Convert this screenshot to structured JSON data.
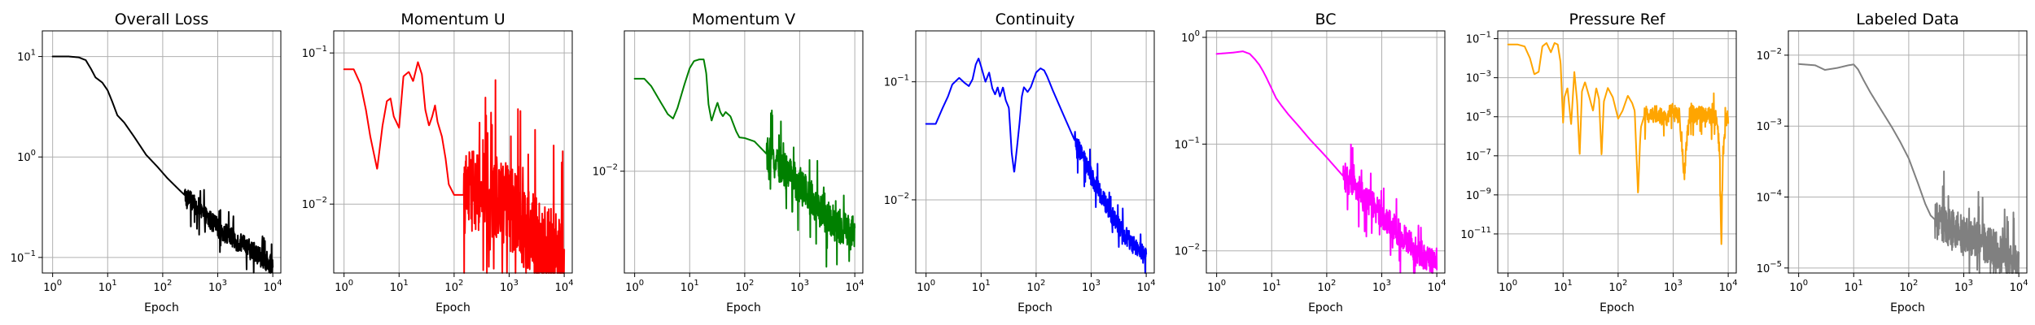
{
  "chart_data": [
    {
      "type": "line",
      "title": "Overall Loss",
      "xlabel": "Epoch",
      "ylabel": "",
      "xscale": "log",
      "yscale": "log",
      "xlim": [
        0.65,
        14000
      ],
      "ylim": [
        0.07,
        18
      ],
      "grid": true,
      "color": "#000000",
      "xticks": [
        {
          "v": 1,
          "b": "10",
          "e": "0"
        },
        {
          "v": 10,
          "b": "10",
          "e": "1"
        },
        {
          "v": 100,
          "b": "10",
          "e": "2"
        },
        {
          "v": 1000,
          "b": "10",
          "e": "3"
        },
        {
          "v": 10000,
          "b": "10",
          "e": "4"
        }
      ],
      "yticks": [
        {
          "v": 0.1,
          "b": "10",
          "e": "−1"
        },
        {
          "v": 1,
          "b": "10",
          "e": "0"
        },
        {
          "v": 10,
          "b": "10",
          "e": "1"
        }
      ],
      "noise": {
        "from": 250,
        "amp": 0.1
      },
      "points": [
        [
          1,
          10
        ],
        [
          2,
          10
        ],
        [
          3,
          9.8
        ],
        [
          4,
          9.2
        ],
        [
          5,
          7.5
        ],
        [
          6,
          6.2
        ],
        [
          8,
          5.5
        ],
        [
          10,
          4.6
        ],
        [
          12,
          3.6
        ],
        [
          15,
          2.6
        ],
        [
          20,
          2.2
        ],
        [
          30,
          1.6
        ],
        [
          50,
          1.05
        ],
        [
          80,
          0.8
        ],
        [
          120,
          0.62
        ],
        [
          200,
          0.47
        ],
        [
          300,
          0.38
        ],
        [
          500,
          0.28
        ],
        [
          1000,
          0.2
        ],
        [
          2000,
          0.15
        ],
        [
          5000,
          0.11
        ],
        [
          10000,
          0.082
        ]
      ]
    },
    {
      "type": "line",
      "title": "Momentum U",
      "xlabel": "Epoch",
      "ylabel": "",
      "xscale": "log",
      "yscale": "log",
      "xlim": [
        0.65,
        14000
      ],
      "ylim": [
        0.0035,
        0.14
      ],
      "grid": true,
      "color": "#ff0000",
      "xticks": [
        {
          "v": 1,
          "b": "10",
          "e": "0"
        },
        {
          "v": 10,
          "b": "10",
          "e": "1"
        },
        {
          "v": 100,
          "b": "10",
          "e": "2"
        },
        {
          "v": 1000,
          "b": "10",
          "e": "3"
        },
        {
          "v": 10000,
          "b": "10",
          "e": "4"
        }
      ],
      "yticks": [
        {
          "v": 0.01,
          "b": "10",
          "e": "−2"
        },
        {
          "v": 0.1,
          "b": "10",
          "e": "−1"
        }
      ],
      "noise": {
        "from": 150,
        "amp": 0.28
      },
      "points": [
        [
          1,
          0.078
        ],
        [
          1.5,
          0.078
        ],
        [
          2,
          0.062
        ],
        [
          2.5,
          0.042
        ],
        [
          3,
          0.028
        ],
        [
          4,
          0.017
        ],
        [
          5,
          0.033
        ],
        [
          6,
          0.048
        ],
        [
          7,
          0.05
        ],
        [
          8,
          0.038
        ],
        [
          10,
          0.032
        ],
        [
          12,
          0.07
        ],
        [
          15,
          0.075
        ],
        [
          18,
          0.065
        ],
        [
          22,
          0.087
        ],
        [
          26,
          0.072
        ],
        [
          30,
          0.042
        ],
        [
          35,
          0.033
        ],
        [
          40,
          0.038
        ],
        [
          45,
          0.045
        ],
        [
          50,
          0.035
        ],
        [
          60,
          0.028
        ],
        [
          70,
          0.02
        ],
        [
          80,
          0.0135
        ],
        [
          100,
          0.0115
        ],
        [
          150,
          0.0115
        ],
        [
          250,
          0.0125
        ],
        [
          400,
          0.0115
        ],
        [
          600,
          0.0112
        ],
        [
          1000,
          0.0095
        ],
        [
          2000,
          0.007
        ],
        [
          4000,
          0.0053
        ],
        [
          7000,
          0.0047
        ],
        [
          10000,
          0.0043
        ]
      ]
    },
    {
      "type": "line",
      "title": "Momentum V",
      "xlabel": "Epoch",
      "ylabel": "",
      "xscale": "log",
      "yscale": "log",
      "xlim": [
        0.65,
        14000
      ],
      "ylim": [
        0.0017,
        0.115
      ],
      "grid": true,
      "color": "#008000",
      "xticks": [
        {
          "v": 1,
          "b": "10",
          "e": "0"
        },
        {
          "v": 10,
          "b": "10",
          "e": "1"
        },
        {
          "v": 100,
          "b": "10",
          "e": "2"
        },
        {
          "v": 1000,
          "b": "10",
          "e": "3"
        },
        {
          "v": 10000,
          "b": "10",
          "e": "4"
        }
      ],
      "yticks": [
        {
          "v": 0.01,
          "b": "10",
          "e": "−2"
        }
      ],
      "noise": {
        "from": 250,
        "amp": 0.14
      },
      "points": [
        [
          1,
          0.05
        ],
        [
          1.5,
          0.05
        ],
        [
          2,
          0.044
        ],
        [
          3,
          0.033
        ],
        [
          4,
          0.027
        ],
        [
          5,
          0.025
        ],
        [
          6,
          0.03
        ],
        [
          8,
          0.045
        ],
        [
          10,
          0.06
        ],
        [
          12,
          0.068
        ],
        [
          15,
          0.07
        ],
        [
          18,
          0.07
        ],
        [
          20,
          0.055
        ],
        [
          22,
          0.032
        ],
        [
          25,
          0.024
        ],
        [
          28,
          0.028
        ],
        [
          32,
          0.033
        ],
        [
          36,
          0.028
        ],
        [
          40,
          0.026
        ],
        [
          45,
          0.028
        ],
        [
          55,
          0.026
        ],
        [
          70,
          0.02
        ],
        [
          80,
          0.018
        ],
        [
          100,
          0.0178
        ],
        [
          150,
          0.0168
        ],
        [
          250,
          0.0135
        ],
        [
          400,
          0.0115
        ],
        [
          700,
          0.0092
        ],
        [
          1000,
          0.0078
        ],
        [
          2000,
          0.0056
        ],
        [
          4000,
          0.0041
        ],
        [
          7000,
          0.0035
        ],
        [
          10000,
          0.0033
        ]
      ]
    },
    {
      "type": "line",
      "title": "Continuity",
      "xlabel": "Epoch",
      "ylabel": "",
      "xscale": "log",
      "yscale": "log",
      "xlim": [
        0.65,
        14000
      ],
      "ylim": [
        0.0024,
        0.27
      ],
      "grid": true,
      "color": "#0000ff",
      "xticks": [
        {
          "v": 1,
          "b": "10",
          "e": "0"
        },
        {
          "v": 10,
          "b": "10",
          "e": "1"
        },
        {
          "v": 100,
          "b": "10",
          "e": "2"
        },
        {
          "v": 1000,
          "b": "10",
          "e": "3"
        },
        {
          "v": 10000,
          "b": "10",
          "e": "4"
        }
      ],
      "yticks": [
        {
          "v": 0.01,
          "b": "10",
          "e": "−2"
        },
        {
          "v": 0.1,
          "b": "10",
          "e": "−1"
        }
      ],
      "noise": {
        "from": 500,
        "amp": 0.08
      },
      "points": [
        [
          1,
          0.044
        ],
        [
          1.5,
          0.044
        ],
        [
          2,
          0.06
        ],
        [
          2.5,
          0.075
        ],
        [
          3,
          0.095
        ],
        [
          4,
          0.108
        ],
        [
          5,
          0.098
        ],
        [
          6,
          0.092
        ],
        [
          7,
          0.105
        ],
        [
          8,
          0.14
        ],
        [
          9,
          0.158
        ],
        [
          10,
          0.135
        ],
        [
          12,
          0.1
        ],
        [
          14,
          0.12
        ],
        [
          16,
          0.088
        ],
        [
          18,
          0.078
        ],
        [
          20,
          0.09
        ],
        [
          22,
          0.075
        ],
        [
          25,
          0.09
        ],
        [
          28,
          0.07
        ],
        [
          32,
          0.06
        ],
        [
          36,
          0.025
        ],
        [
          40,
          0.017
        ],
        [
          45,
          0.028
        ],
        [
          50,
          0.045
        ],
        [
          55,
          0.075
        ],
        [
          60,
          0.09
        ],
        [
          70,
          0.082
        ],
        [
          80,
          0.09
        ],
        [
          100,
          0.12
        ],
        [
          120,
          0.13
        ],
        [
          140,
          0.125
        ],
        [
          160,
          0.11
        ],
        [
          200,
          0.085
        ],
        [
          300,
          0.055
        ],
        [
          500,
          0.032
        ],
        [
          800,
          0.02
        ],
        [
          1000,
          0.016
        ],
        [
          2000,
          0.0085
        ],
        [
          3000,
          0.0062
        ],
        [
          5000,
          0.0045
        ],
        [
          8000,
          0.0036
        ],
        [
          10000,
          0.0033
        ]
      ]
    },
    {
      "type": "line",
      "title": "BC",
      "xlabel": "Epoch",
      "ylabel": "",
      "xscale": "log",
      "yscale": "log",
      "xlim": [
        0.65,
        14000
      ],
      "ylim": [
        0.0062,
        1.15
      ],
      "grid": true,
      "color": "#ff00ff",
      "xticks": [
        {
          "v": 1,
          "b": "10",
          "e": "0"
        },
        {
          "v": 10,
          "b": "10",
          "e": "1"
        },
        {
          "v": 100,
          "b": "10",
          "e": "2"
        },
        {
          "v": 1000,
          "b": "10",
          "e": "3"
        },
        {
          "v": 10000,
          "b": "10",
          "e": "4"
        }
      ],
      "yticks": [
        {
          "v": 0.01,
          "b": "10",
          "e": "−2"
        },
        {
          "v": 0.1,
          "b": "10",
          "e": "−1"
        },
        {
          "v": 1,
          "b": "10",
          "e": "0"
        }
      ],
      "noise": {
        "from": 200,
        "amp": 0.13
      },
      "points": [
        [
          1,
          0.7
        ],
        [
          2,
          0.72
        ],
        [
          3,
          0.74
        ],
        [
          4,
          0.7
        ],
        [
          5,
          0.62
        ],
        [
          6,
          0.55
        ],
        [
          7,
          0.48
        ],
        [
          8,
          0.42
        ],
        [
          10,
          0.33
        ],
        [
          12,
          0.27
        ],
        [
          15,
          0.23
        ],
        [
          20,
          0.19
        ],
        [
          30,
          0.15
        ],
        [
          50,
          0.11
        ],
        [
          80,
          0.085
        ],
        [
          100,
          0.075
        ],
        [
          200,
          0.05
        ],
        [
          300,
          0.042
        ],
        [
          500,
          0.031
        ],
        [
          1000,
          0.022
        ],
        [
          2000,
          0.015
        ],
        [
          5000,
          0.0095
        ],
        [
          10000,
          0.0071
        ]
      ]
    },
    {
      "type": "line",
      "title": "Pressure Ref",
      "xlabel": "Epoch",
      "ylabel": "",
      "xscale": "log",
      "yscale": "log",
      "xlim": [
        0.65,
        14000
      ],
      "ylim": [
        1e-13,
        0.25
      ],
      "grid": true,
      "color": "#ffa500",
      "xticks": [
        {
          "v": 1,
          "b": "10",
          "e": "0"
        },
        {
          "v": 10,
          "b": "10",
          "e": "1"
        },
        {
          "v": 100,
          "b": "10",
          "e": "2"
        },
        {
          "v": 1000,
          "b": "10",
          "e": "3"
        },
        {
          "v": 10000,
          "b": "10",
          "e": "4"
        }
      ],
      "yticks": [
        {
          "v": 1e-11,
          "b": "10",
          "e": "−11"
        },
        {
          "v": 1e-09,
          "b": "10",
          "e": "−9"
        },
        {
          "v": 1e-07,
          "b": "10",
          "e": "−7"
        },
        {
          "v": 1e-05,
          "b": "10",
          "e": "−5"
        },
        {
          "v": 0.001,
          "b": "10",
          "e": "−3"
        },
        {
          "v": 0.1,
          "b": "10",
          "e": "−1"
        }
      ],
      "noise": {
        "from": 300,
        "amp": 0.45
      },
      "points": [
        [
          1,
          0.05
        ],
        [
          1.5,
          0.05
        ],
        [
          2,
          0.04
        ],
        [
          2.5,
          0.01
        ],
        [
          3,
          0.0015
        ],
        [
          3.6,
          0.002
        ],
        [
          4.2,
          0.04
        ],
        [
          5,
          0.06
        ],
        [
          6,
          0.02
        ],
        [
          7,
          0.06
        ],
        [
          8,
          0.05
        ],
        [
          9,
          0.006
        ],
        [
          10,
          5e-06
        ],
        [
          10.6,
          0.0001
        ],
        [
          12,
          0.0003
        ],
        [
          14,
          4e-06
        ],
        [
          16,
          0.002
        ],
        [
          18,
          6e-05
        ],
        [
          20,
          1e-07
        ],
        [
          22,
          0.0002
        ],
        [
          25,
          0.0006
        ],
        [
          30,
          0.0001
        ],
        [
          35,
          2e-05
        ],
        [
          40,
          0.0003
        ],
        [
          45,
          8e-05
        ],
        [
          50,
          1e-07
        ],
        [
          55,
          6e-05
        ],
        [
          65,
          0.0003
        ],
        [
          80,
          0.0001
        ],
        [
          100,
          8e-06
        ],
        [
          120,
          2e-05
        ],
        [
          150,
          0.00012
        ],
        [
          180,
          5e-05
        ],
        [
          200,
          2e-05
        ],
        [
          230,
          1e-09
        ],
        [
          250,
          5e-07
        ],
        [
          260,
          3e-06
        ],
        [
          300,
          1.2e-05
        ],
        [
          500,
          1.5e-05
        ],
        [
          700,
          8e-06
        ],
        [
          900,
          1.5e-05
        ],
        [
          1000,
          1.8e-05
        ],
        [
          1300,
          1e-05
        ],
        [
          1600,
          1e-08
        ],
        [
          1800,
          1e-06
        ],
        [
          2000,
          1.5e-05
        ],
        [
          4000,
          1.2e-05
        ],
        [
          6000,
          8e-06
        ],
        [
          7000,
          2e-07
        ],
        [
          7500,
          3e-12
        ],
        [
          8000,
          1e-07
        ],
        [
          9000,
          5e-06
        ],
        [
          10000,
          1e-05
        ]
      ]
    },
    {
      "type": "line",
      "title": "Labeled Data",
      "xlabel": "Epoch",
      "ylabel": "",
      "xscale": "log",
      "yscale": "log",
      "xlim": [
        0.65,
        14000
      ],
      "ylim": [
        8.5e-06,
        0.022
      ],
      "grid": true,
      "color": "#808080",
      "xticks": [
        {
          "v": 1,
          "b": "10",
          "e": "0"
        },
        {
          "v": 10,
          "b": "10",
          "e": "1"
        },
        {
          "v": 100,
          "b": "10",
          "e": "2"
        },
        {
          "v": 1000,
          "b": "10",
          "e": "3"
        },
        {
          "v": 10000,
          "b": "10",
          "e": "4"
        }
      ],
      "yticks": [
        {
          "v": 1e-05,
          "b": "10",
          "e": "−5"
        },
        {
          "v": 0.0001,
          "b": "10",
          "e": "−4"
        },
        {
          "v": 0.001,
          "b": "10",
          "e": "−3"
        },
        {
          "v": 0.01,
          "b": "10",
          "e": "−2"
        }
      ],
      "noise": {
        "from": 300,
        "amp": 0.28
      },
      "points": [
        [
          1,
          0.0075
        ],
        [
          2,
          0.0072
        ],
        [
          3,
          0.0062
        ],
        [
          5,
          0.0066
        ],
        [
          8,
          0.0072
        ],
        [
          10,
          0.0074
        ],
        [
          12,
          0.0063
        ],
        [
          15,
          0.0045
        ],
        [
          20,
          0.003
        ],
        [
          30,
          0.0018
        ],
        [
          50,
          0.00095
        ],
        [
          70,
          0.0006
        ],
        [
          100,
          0.00035
        ],
        [
          150,
          0.00015
        ],
        [
          200,
          8e-05
        ],
        [
          250,
          5.5e-05
        ],
        [
          300,
          4.8e-05
        ],
        [
          500,
          3.8e-05
        ],
        [
          1000,
          3e-05
        ],
        [
          2000,
          2.5e-05
        ],
        [
          4000,
          1.7e-05
        ],
        [
          10000,
          1.2e-05
        ]
      ]
    }
  ]
}
